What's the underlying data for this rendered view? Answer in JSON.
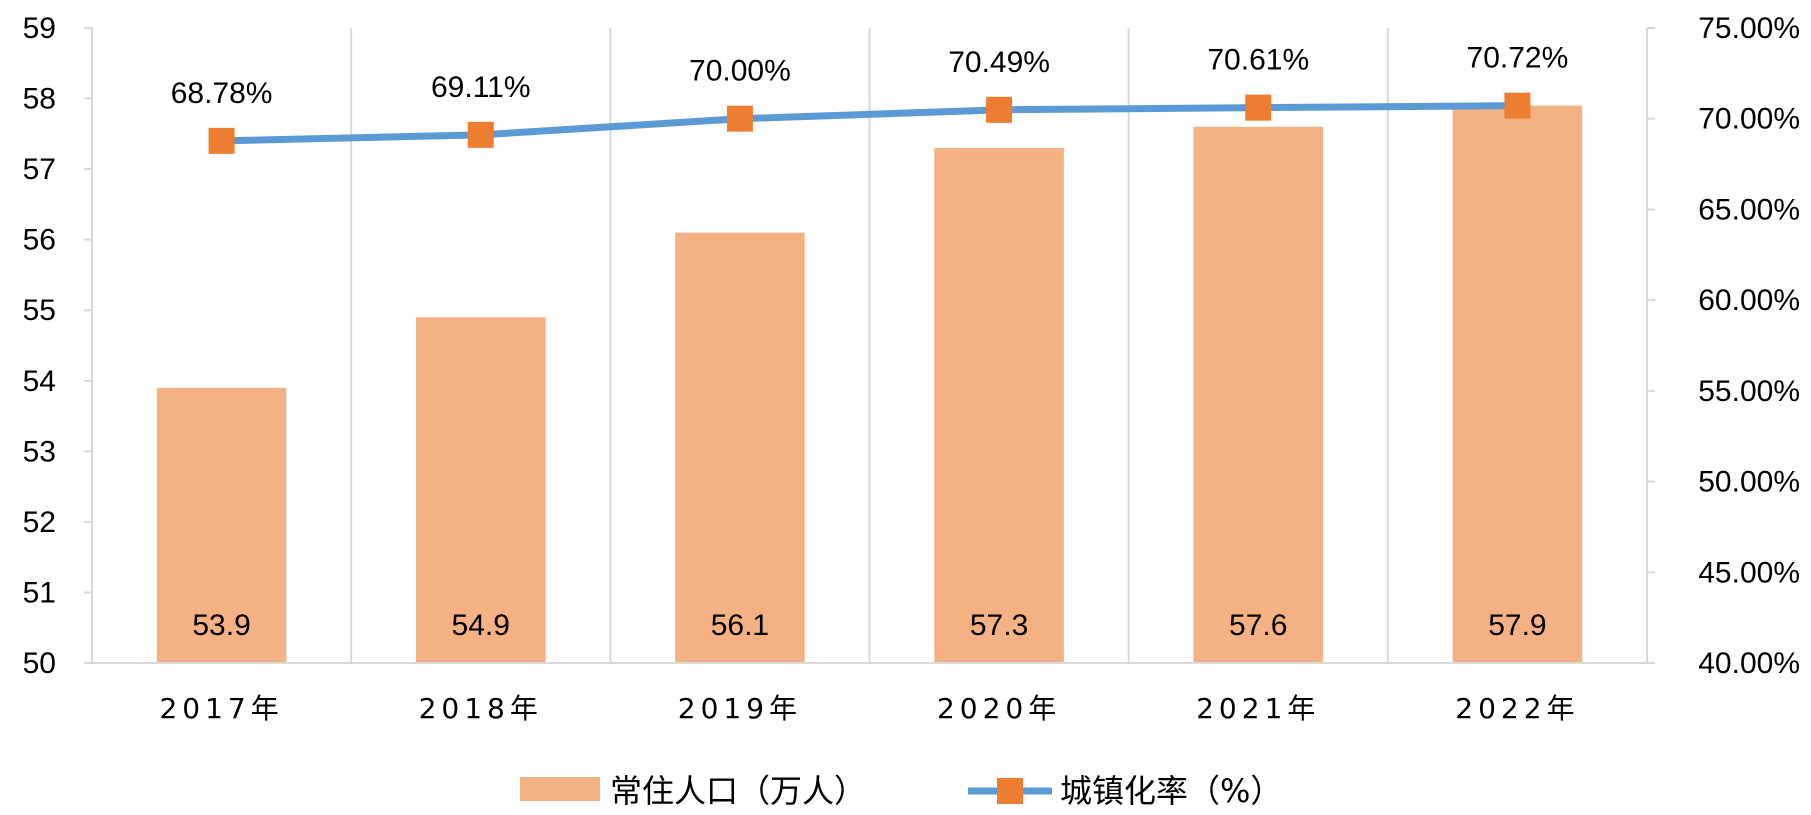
{
  "chart_data": {
    "type": "bar",
    "categories": [
      "2017年",
      "2018年",
      "2019年",
      "2020年",
      "2021年",
      "2022年"
    ],
    "series": [
      {
        "name": "常住人口（万人）",
        "type": "bar",
        "axis": "left",
        "values": [
          53.9,
          54.9,
          56.1,
          57.3,
          57.6,
          57.9
        ],
        "labels": [
          "53.9",
          "54.9",
          "56.1",
          "57.3",
          "57.6",
          "57.9"
        ],
        "color": "#F4B183"
      },
      {
        "name": "城镇化率（%）",
        "type": "line",
        "axis": "right",
        "values": [
          68.78,
          69.11,
          70.0,
          70.49,
          70.61,
          70.72
        ],
        "labels": [
          "68.78%",
          "69.11%",
          "70.00%",
          "70.49%",
          "70.61%",
          "70.72%"
        ],
        "color": "#5B9BD5",
        "marker_color": "#ED7D31"
      }
    ],
    "y_left": {
      "min": 50,
      "max": 59,
      "ticks": [
        "50",
        "51",
        "52",
        "53",
        "54",
        "55",
        "56",
        "57",
        "58",
        "59"
      ]
    },
    "y_right": {
      "min": 40,
      "max": 75,
      "ticks": [
        "40.00%",
        "45.00%",
        "50.00%",
        "55.00%",
        "60.00%",
        "65.00%",
        "70.00%",
        "75.00%"
      ]
    },
    "grid": "vertical",
    "legend_position": "bottom"
  }
}
